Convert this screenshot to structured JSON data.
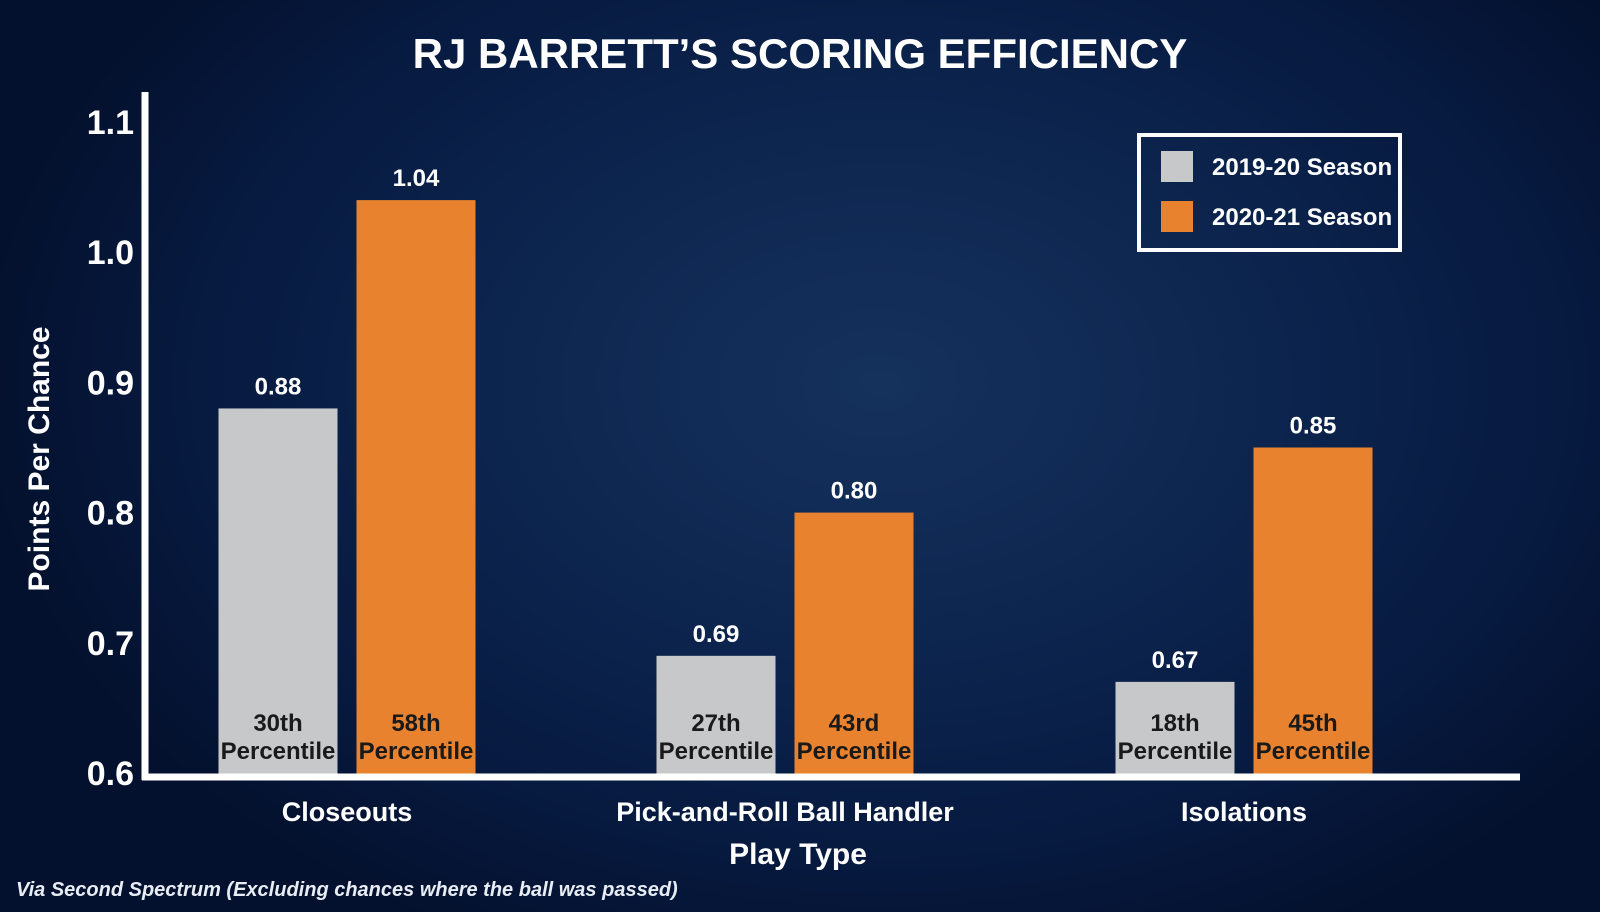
{
  "chart_data": {
    "type": "bar",
    "title": "RJ BARRETT’S SCORING EFFICIENCY",
    "xlabel": "Play Type",
    "ylabel": "Points Per Chance",
    "ylim": [
      0.6,
      1.1
    ],
    "yticks": [
      "0.6",
      "0.7",
      "0.8",
      "0.9",
      "1.0",
      "1.1"
    ],
    "ytick_values": [
      0.6,
      0.7,
      0.8,
      0.9,
      1.0,
      1.1
    ],
    "categories": [
      "Closeouts",
      "Pick-and-Roll Ball Handler",
      "Isolations"
    ],
    "series": [
      {
        "name": "2019-20 Season",
        "color": "#c7c8ca",
        "values": [
          0.88,
          0.69,
          0.67
        ],
        "value_labels": [
          "0.88",
          "0.69",
          "0.67"
        ],
        "percentile_rank": [
          "30th",
          "27th",
          "18th"
        ],
        "percentile_word": "Percentile"
      },
      {
        "name": "2020-21 Season",
        "color": "#e8822e",
        "values": [
          1.04,
          0.8,
          0.85
        ],
        "value_labels": [
          "1.04",
          "0.80",
          "0.85"
        ],
        "percentile_rank": [
          "58th",
          "43rd",
          "45th"
        ],
        "percentile_word": "Percentile"
      }
    ],
    "legend_position": "top-right",
    "grid": false
  },
  "footer": {
    "source": "Via Second Spectrum (Excluding chances where the ball was passed)"
  },
  "colors": {
    "axis": "#ffffff",
    "background": "#0d2650"
  }
}
